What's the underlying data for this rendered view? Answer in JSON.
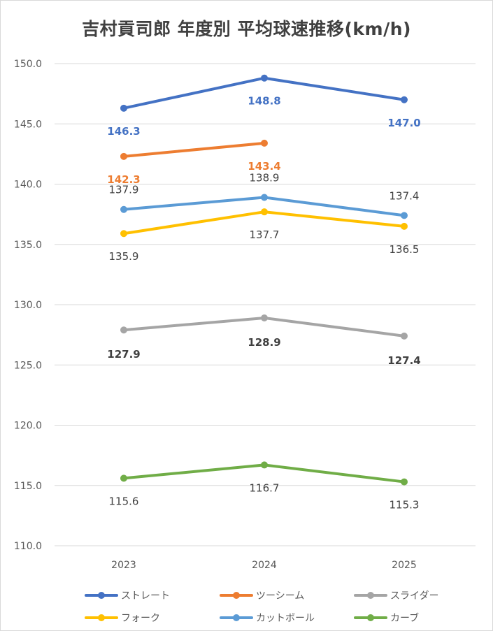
{
  "chart_data": {
    "type": "line",
    "title": "吉村貢司郎 年度別 平均球速推移(km/h)",
    "categories": [
      "2023",
      "2024",
      "2025"
    ],
    "ylim": [
      110,
      150
    ],
    "yticks": [
      "110.0",
      "115.0",
      "120.0",
      "125.0",
      "130.0",
      "135.0",
      "140.0",
      "145.0",
      "150.0"
    ],
    "xlabel": "",
    "ylabel": "",
    "grid": true,
    "legend_position": "bottom",
    "series": [
      {
        "name": "ストレート",
        "color": "#4472c4",
        "values": [
          146.3,
          148.8,
          147.0
        ],
        "labels": [
          "146.3",
          "148.8",
          "147.0"
        ],
        "label_color": "#4472c4",
        "label_bold": true
      },
      {
        "name": "ツーシーム",
        "color": "#ed7d31",
        "values": [
          142.3,
          143.4,
          null
        ],
        "labels": [
          "142.3",
          "143.4",
          ""
        ],
        "label_color": "#ed7d31",
        "label_bold": true
      },
      {
        "name": "スライダー",
        "color": "#a5a5a5",
        "values": [
          127.9,
          128.9,
          127.4
        ],
        "labels": [
          "127.9",
          "128.9",
          "127.4"
        ],
        "label_color": "#404040",
        "label_bold": true
      },
      {
        "name": "フォーク",
        "color": "#ffc000",
        "values": [
          135.9,
          137.7,
          136.5
        ],
        "labels": [
          "135.9",
          "137.7",
          "136.5"
        ],
        "label_color": "#404040",
        "label_bold": false
      },
      {
        "name": "カットボール",
        "color": "#5b9bd5",
        "values": [
          137.9,
          138.9,
          137.4
        ],
        "labels": [
          "137.9",
          "138.9",
          "137.4"
        ],
        "label_color": "#404040",
        "label_bold": false
      },
      {
        "name": "カーブ",
        "color": "#70ad47",
        "values": [
          115.6,
          116.7,
          115.3
        ],
        "labels": [
          "115.6",
          "116.7",
          "115.3"
        ],
        "label_color": "#404040",
        "label_bold": false
      }
    ]
  }
}
